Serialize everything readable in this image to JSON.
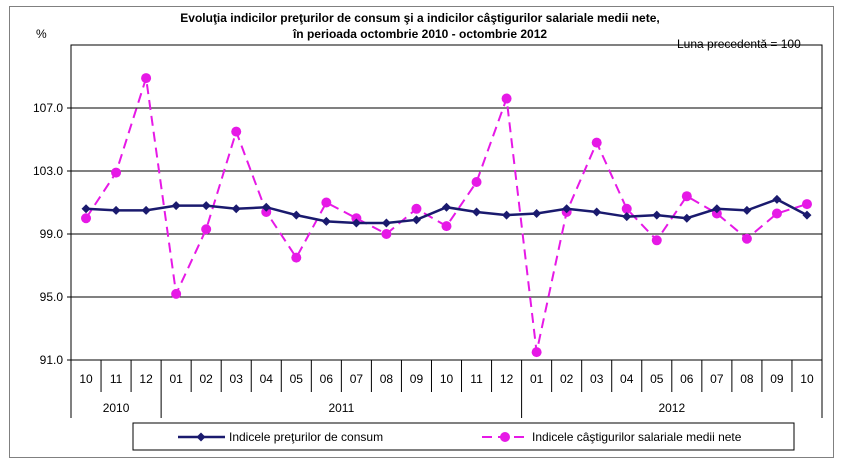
{
  "chart_data": {
    "type": "line",
    "title": "Evoluţia indicilor preţurilor de consum şi a indicilor câştigurilor salariale medii nete,",
    "subtitle": "în perioada octombrie  2010 - octombrie 2012",
    "ylabel": "%",
    "note": "Luna precedentă = 100",
    "ylim": [
      91,
      111
    ],
    "yticks": [
      "91.0",
      "95.0",
      "99.0",
      "103.0",
      "107.0"
    ],
    "ytick_values": [
      91,
      95,
      99,
      103,
      107
    ],
    "categories": [
      "10",
      "11",
      "12",
      "01",
      "02",
      "03",
      "04",
      "05",
      "06",
      "07",
      "08",
      "09",
      "10",
      "11",
      "12",
      "01",
      "02",
      "03",
      "04",
      "05",
      "06",
      "07",
      "08",
      "09",
      "10"
    ],
    "years": [
      {
        "label": "2010",
        "start": 0,
        "end": 2
      },
      {
        "label": "2011",
        "start": 3,
        "end": 14
      },
      {
        "label": "2012",
        "start": 15,
        "end": 24
      }
    ],
    "series": [
      {
        "name": "Indicele preţurilor de consum",
        "color": "#1a1a6e",
        "style": "solid",
        "marker": "diamond",
        "values": [
          100.6,
          100.5,
          100.5,
          100.8,
          100.8,
          100.6,
          100.7,
          100.2,
          99.8,
          99.7,
          99.7,
          99.9,
          100.7,
          100.4,
          100.2,
          100.3,
          100.6,
          100.4,
          100.1,
          100.2,
          100.0,
          100.6,
          100.5,
          101.2,
          100.2
        ]
      },
      {
        "name": "Indicele câştigurilor salariale medii nete",
        "color": "#e619e6",
        "style": "dashed",
        "marker": "circle",
        "values": [
          100.0,
          102.9,
          108.9,
          95.2,
          99.3,
          105.5,
          100.4,
          97.5,
          101.0,
          100.0,
          99.0,
          100.6,
          99.5,
          102.3,
          107.6,
          91.5,
          100.4,
          104.8,
          100.6,
          98.6,
          101.4,
          100.3,
          98.7,
          100.3,
          100.9
        ]
      }
    ]
  }
}
